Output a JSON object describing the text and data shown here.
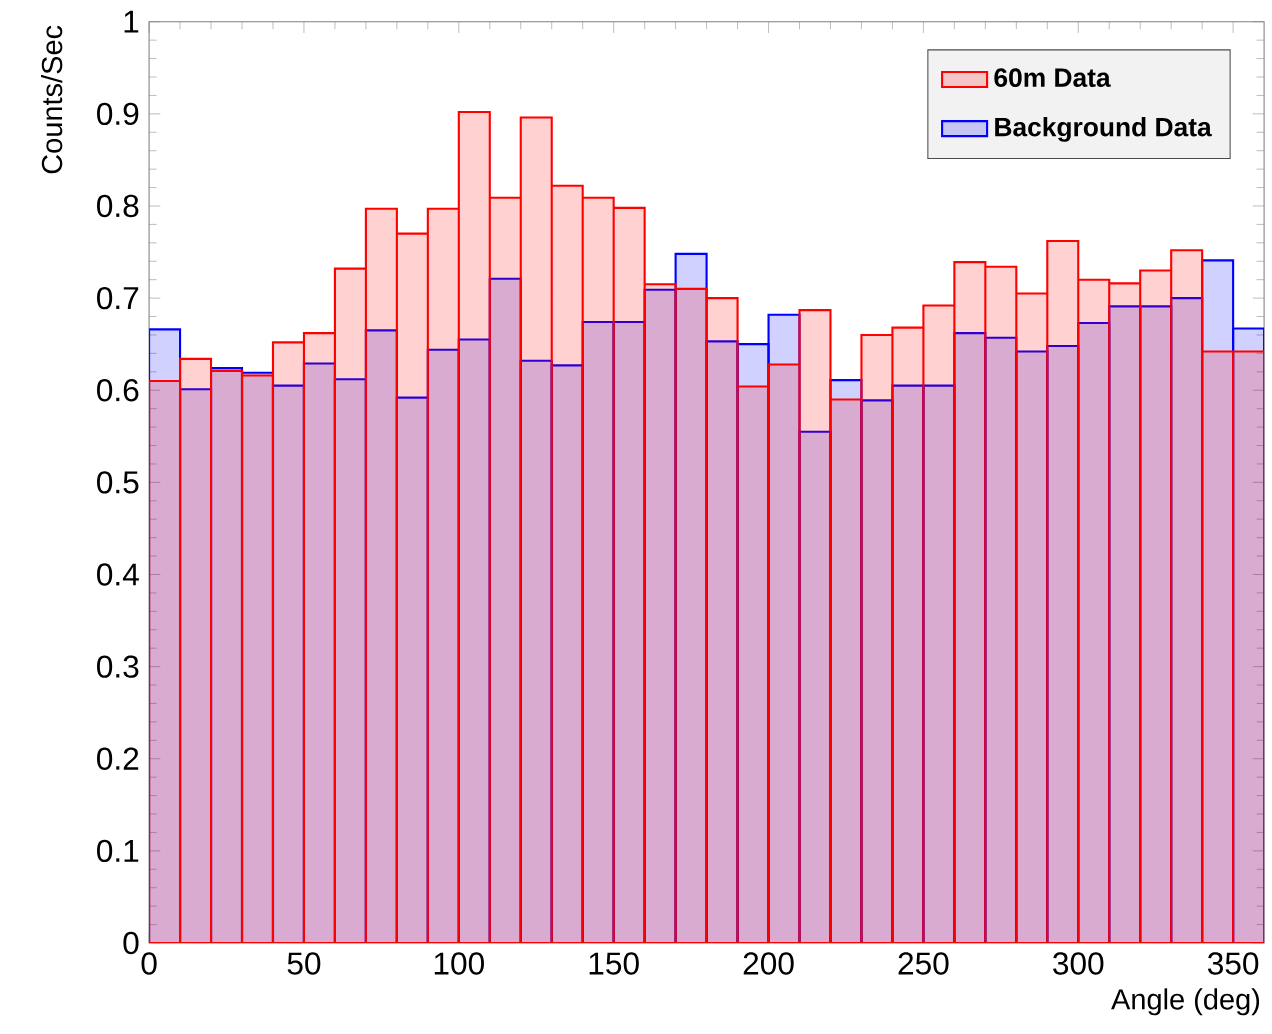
{
  "chart_data": {
    "type": "histogram",
    "xlabel": "Angle (deg)",
    "ylabel": "Counts/Sec",
    "bins": [
      0,
      10,
      20,
      30,
      40,
      50,
      60,
      70,
      80,
      90,
      100,
      110,
      120,
      130,
      140,
      150,
      160,
      170,
      180,
      190,
      200,
      210,
      220,
      230,
      240,
      250,
      260,
      270,
      280,
      290,
      300,
      310,
      320,
      330,
      340,
      350,
      360
    ],
    "series": [
      {
        "name": "60m Data",
        "color": "#ff0000",
        "values": [
          0.61,
          0.634,
          0.621,
          0.616,
          0.652,
          0.662,
          0.732,
          0.797,
          0.77,
          0.797,
          0.902,
          0.809,
          0.896,
          0.822,
          0.809,
          0.798,
          0.715,
          0.71,
          0.7,
          0.604,
          0.628,
          0.687,
          0.59,
          0.66,
          0.668,
          0.692,
          0.739,
          0.734,
          0.705,
          0.762,
          0.72,
          0.716,
          0.73,
          0.752,
          0.642,
          0.642
        ]
      },
      {
        "name": "Background Data",
        "color": "#0000ff",
        "values": [
          0.666,
          0.601,
          0.624,
          0.619,
          0.605,
          0.629,
          0.612,
          0.665,
          0.592,
          0.644,
          0.655,
          0.721,
          0.632,
          0.627,
          0.674,
          0.674,
          0.709,
          0.748,
          0.653,
          0.65,
          0.682,
          0.555,
          0.611,
          0.589,
          0.605,
          0.605,
          0.662,
          0.657,
          0.642,
          0.648,
          0.673,
          0.691,
          0.691,
          0.7,
          0.741,
          0.667
        ]
      }
    ],
    "xlim": [
      0,
      360
    ],
    "ylim": [
      0,
      1
    ],
    "xticks": [
      0,
      50,
      100,
      150,
      200,
      250,
      300,
      350
    ],
    "yticks": [
      0,
      0.1,
      0.2,
      0.3,
      0.4,
      0.5,
      0.6,
      0.7,
      0.8,
      0.9,
      1
    ],
    "legend": "top right",
    "grid": false
  }
}
